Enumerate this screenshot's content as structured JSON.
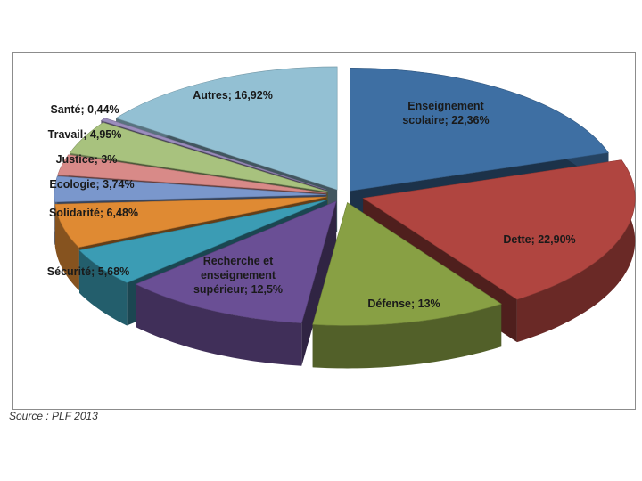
{
  "chart_data": {
    "type": "pie",
    "categories": [
      "Enseignement scolaire",
      "Dette",
      "Défense",
      "Recherche et enseignement supérieur",
      "Sécurité",
      "Solidarité",
      "Ecologie",
      "Justice",
      "Travail",
      "Santé",
      "Autres"
    ],
    "values": [
      22.36,
      22.9,
      13,
      12.5,
      5.68,
      6.48,
      3.74,
      3,
      4.95,
      0.44,
      16.92
    ],
    "labels": [
      [
        "Enseignement",
        "scolaire; 22,36%"
      ],
      [
        "Dette; 22,90%"
      ],
      [
        "Défense; 13%"
      ],
      [
        "Recherche et",
        "enseignement",
        "supérieur; 12,5%"
      ],
      [
        "Sécurité; 5,68%"
      ],
      [
        "Solidarité; 6,48%"
      ],
      [
        "Ecologie; 3,74%"
      ],
      [
        "Justice; 3%"
      ],
      [
        "Travail; 4,95%"
      ],
      [
        "Santé; 0,44%"
      ],
      [
        "Autres; 16,92%"
      ]
    ],
    "colors": [
      "#3e6fa3",
      "#b04540",
      "#88a044",
      "#6a4f95",
      "#3b9cb4",
      "#df8a33",
      "#7a97cc",
      "#d88a88",
      "#a8c27e",
      "#9b8dbd",
      "#93c0d3"
    ],
    "exploded": true,
    "style": "3d"
  },
  "source": "Source : PLF 2013"
}
